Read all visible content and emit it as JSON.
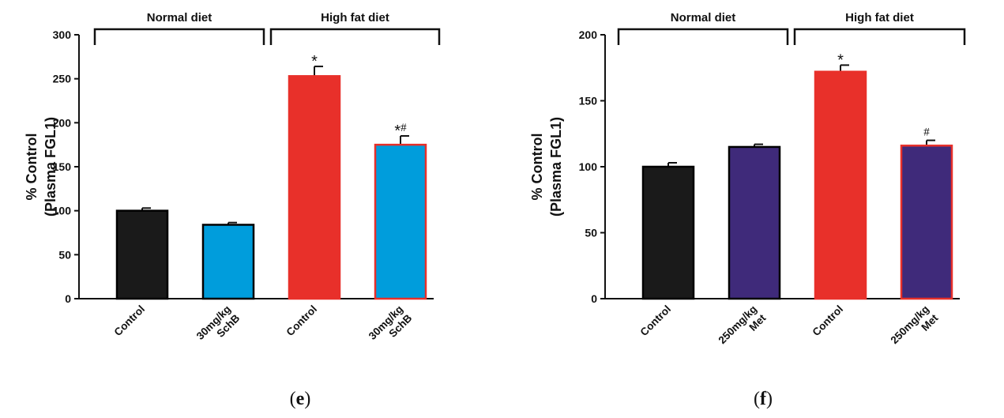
{
  "chart_data": [
    {
      "type": "bar",
      "panel_label": "e",
      "ylabel_line1": "% Control",
      "ylabel_line2": "(Plasma FGL1)",
      "ylim": [
        0,
        300
      ],
      "yticks": [
        0,
        50,
        100,
        150,
        200,
        250,
        300
      ],
      "groups": [
        {
          "label": "Normal diet",
          "category_indices": [
            0,
            1
          ]
        },
        {
          "label": "High fat diet",
          "category_indices": [
            2,
            3
          ]
        }
      ],
      "categories": [
        {
          "line1": "Control",
          "line2": ""
        },
        {
          "line1": "30mg/kg",
          "line2": "SchB"
        },
        {
          "line1": "Control",
          "line2": ""
        },
        {
          "line1": "30mg/kg",
          "line2": "SchB"
        }
      ],
      "values": [
        100,
        84,
        253,
        175
      ],
      "errors": [
        3,
        2.5,
        11,
        10
      ],
      "significance": [
        "",
        "",
        "*",
        "*#"
      ],
      "colors": [
        "#1a1a1a",
        "#009ddc",
        "#e8302a",
        "#009ddc"
      ],
      "edge_colors": [
        "#000000",
        "#000000",
        "#e8302a",
        "#e8302a"
      ]
    },
    {
      "type": "bar",
      "panel_label": "f",
      "ylabel_line1": "% Control",
      "ylabel_line2": "(Plasma FGL1)",
      "ylim": [
        0,
        200
      ],
      "yticks": [
        0,
        50,
        100,
        150,
        200
      ],
      "groups": [
        {
          "label": "Normal diet",
          "category_indices": [
            0,
            1
          ]
        },
        {
          "label": "High fat diet",
          "category_indices": [
            2,
            3
          ]
        }
      ],
      "categories": [
        {
          "line1": "Control",
          "line2": ""
        },
        {
          "line1": "250mg/kg",
          "line2": "Met"
        },
        {
          "line1": "Control",
          "line2": ""
        },
        {
          "line1": "250mg/kg",
          "line2": "Met"
        }
      ],
      "values": [
        100,
        115,
        172,
        116
      ],
      "errors": [
        3,
        2,
        5,
        4
      ],
      "significance": [
        "",
        "",
        "*",
        "#"
      ],
      "colors": [
        "#1a1a1a",
        "#3f2a7a",
        "#e8302a",
        "#3f2a7a"
      ],
      "edge_colors": [
        "#000000",
        "#000000",
        "#e8302a",
        "#e8302a"
      ]
    }
  ]
}
